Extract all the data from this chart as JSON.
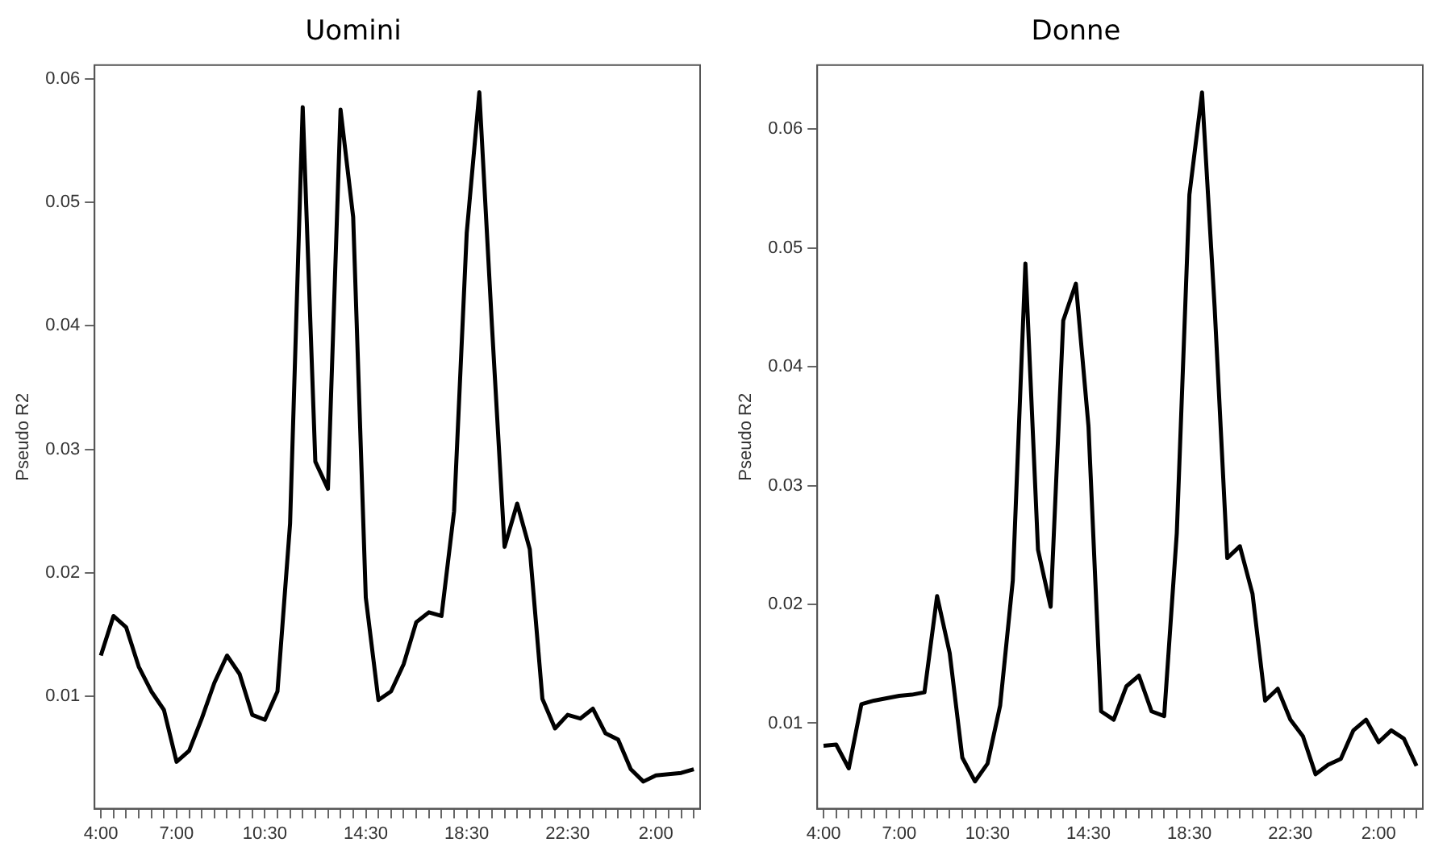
{
  "chart_data": [
    {
      "type": "line",
      "title": "Uomini",
      "ylabel": "Pseudo R2",
      "categories": [
        "4:00",
        null,
        null,
        null,
        null,
        null,
        "7:00",
        null,
        null,
        null,
        null,
        null,
        null,
        "10:30",
        null,
        null,
        null,
        null,
        null,
        null,
        null,
        "14:30",
        null,
        null,
        null,
        null,
        null,
        null,
        null,
        "18:30",
        null,
        null,
        null,
        null,
        null,
        null,
        null,
        "22:30",
        null,
        null,
        null,
        null,
        null,
        null,
        "2:00",
        null,
        null,
        null
      ],
      "series": [
        {
          "color": "#000000",
          "values": [
            0.0133,
            0.0165,
            0.0156,
            0.0124,
            0.0104,
            0.0089,
            0.0047,
            0.0056,
            0.0082,
            0.0111,
            0.0133,
            0.0118,
            0.0085,
            0.0081,
            0.0104,
            0.024,
            0.0577,
            0.029,
            0.0268,
            0.0575,
            0.0488,
            0.018,
            0.0097,
            0.0104,
            0.0126,
            0.016,
            0.0168,
            0.0165,
            0.025,
            0.0475,
            0.0589,
            0.04,
            0.0221,
            0.0256,
            0.0219,
            0.0098,
            0.0074,
            0.0085,
            0.0082,
            0.009,
            0.007,
            0.0065,
            0.0041,
            0.0031,
            0.0036,
            0.0037,
            0.0038,
            0.0041
          ]
        }
      ],
      "ylim": [
        0.0009,
        0.0611
      ],
      "yticks": [
        0.01,
        0.02,
        0.03,
        0.04,
        0.05,
        0.06
      ],
      "grid": false,
      "legend": false,
      "marker": "none",
      "line_style": "solid"
    },
    {
      "type": "line",
      "title": "Donne",
      "ylabel": "Pseudo R2",
      "categories": [
        "4:00",
        null,
        null,
        null,
        null,
        null,
        "7:00",
        null,
        null,
        null,
        null,
        null,
        null,
        "10:30",
        null,
        null,
        null,
        null,
        null,
        null,
        null,
        "14:30",
        null,
        null,
        null,
        null,
        null,
        null,
        null,
        "18:30",
        null,
        null,
        null,
        null,
        null,
        null,
        null,
        "22:30",
        null,
        null,
        null,
        null,
        null,
        null,
        "2:00",
        null,
        null,
        null
      ],
      "series": [
        {
          "color": "#000000",
          "values": [
            0.0081,
            0.0082,
            0.0062,
            0.0116,
            0.0119,
            0.0121,
            0.0123,
            0.0124,
            0.0126,
            0.0207,
            0.0159,
            0.0071,
            0.0051,
            0.0066,
            0.0115,
            0.022,
            0.0487,
            0.0246,
            0.0198,
            0.0439,
            0.047,
            0.035,
            0.011,
            0.0103,
            0.0131,
            0.014,
            0.011,
            0.0106,
            0.026,
            0.0545,
            0.0631,
            0.045,
            0.0239,
            0.0249,
            0.0209,
            0.0119,
            0.0129,
            0.0103,
            0.0089,
            0.0057,
            0.0065,
            0.007,
            0.0094,
            0.0103,
            0.0084,
            0.0094,
            0.0087,
            0.0064
          ]
        }
      ],
      "ylim": [
        0.0028,
        0.0654
      ],
      "yticks": [
        0.01,
        0.02,
        0.03,
        0.04,
        0.05,
        0.06
      ],
      "grid": false,
      "legend": false,
      "marker": "none",
      "line_style": "solid"
    }
  ]
}
